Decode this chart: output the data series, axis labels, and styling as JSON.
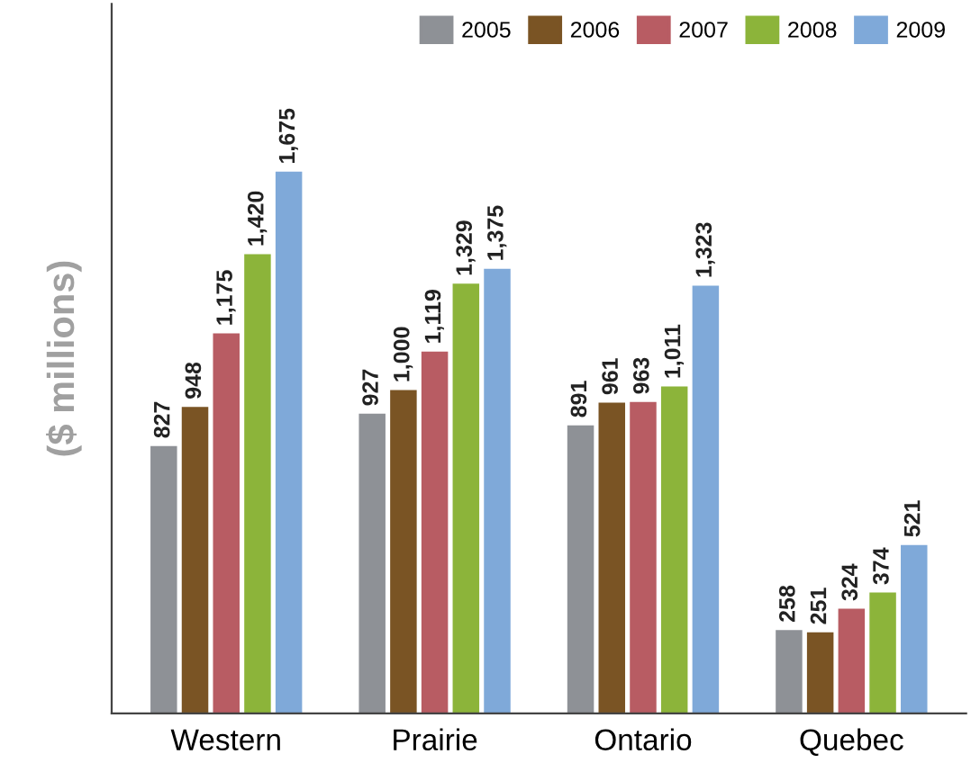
{
  "chart_data": {
    "type": "bar",
    "ylabel": "($ millions)",
    "categories": [
      "Western",
      "Prairie",
      "Ontario",
      "Quebec"
    ],
    "series": [
      {
        "name": "2005",
        "color": "#8e9196",
        "values": [
          827,
          927,
          891,
          258
        ],
        "value_labels": [
          "827",
          "927",
          "891",
          "258"
        ]
      },
      {
        "name": "2006",
        "color": "#7a5424",
        "values": [
          948,
          1000,
          961,
          251
        ],
        "value_labels": [
          "948",
          "1,000",
          "961",
          "251"
        ]
      },
      {
        "name": "2007",
        "color": "#b85c63",
        "values": [
          1175,
          1119,
          963,
          324
        ],
        "value_labels": [
          "1,175",
          "1,119",
          "963",
          "324"
        ]
      },
      {
        "name": "2008",
        "color": "#8cb43a",
        "values": [
          1420,
          1329,
          1011,
          374
        ],
        "value_labels": [
          "1,420",
          "1,329",
          "1,011",
          "374"
        ]
      },
      {
        "name": "2009",
        "color": "#7fa9d9",
        "values": [
          1675,
          1375,
          1323,
          521
        ],
        "value_labels": [
          "1,675",
          "1,375",
          "1,323",
          "521"
        ]
      }
    ],
    "legend": "top right",
    "grid": false,
    "tick_labels": "x"
  }
}
